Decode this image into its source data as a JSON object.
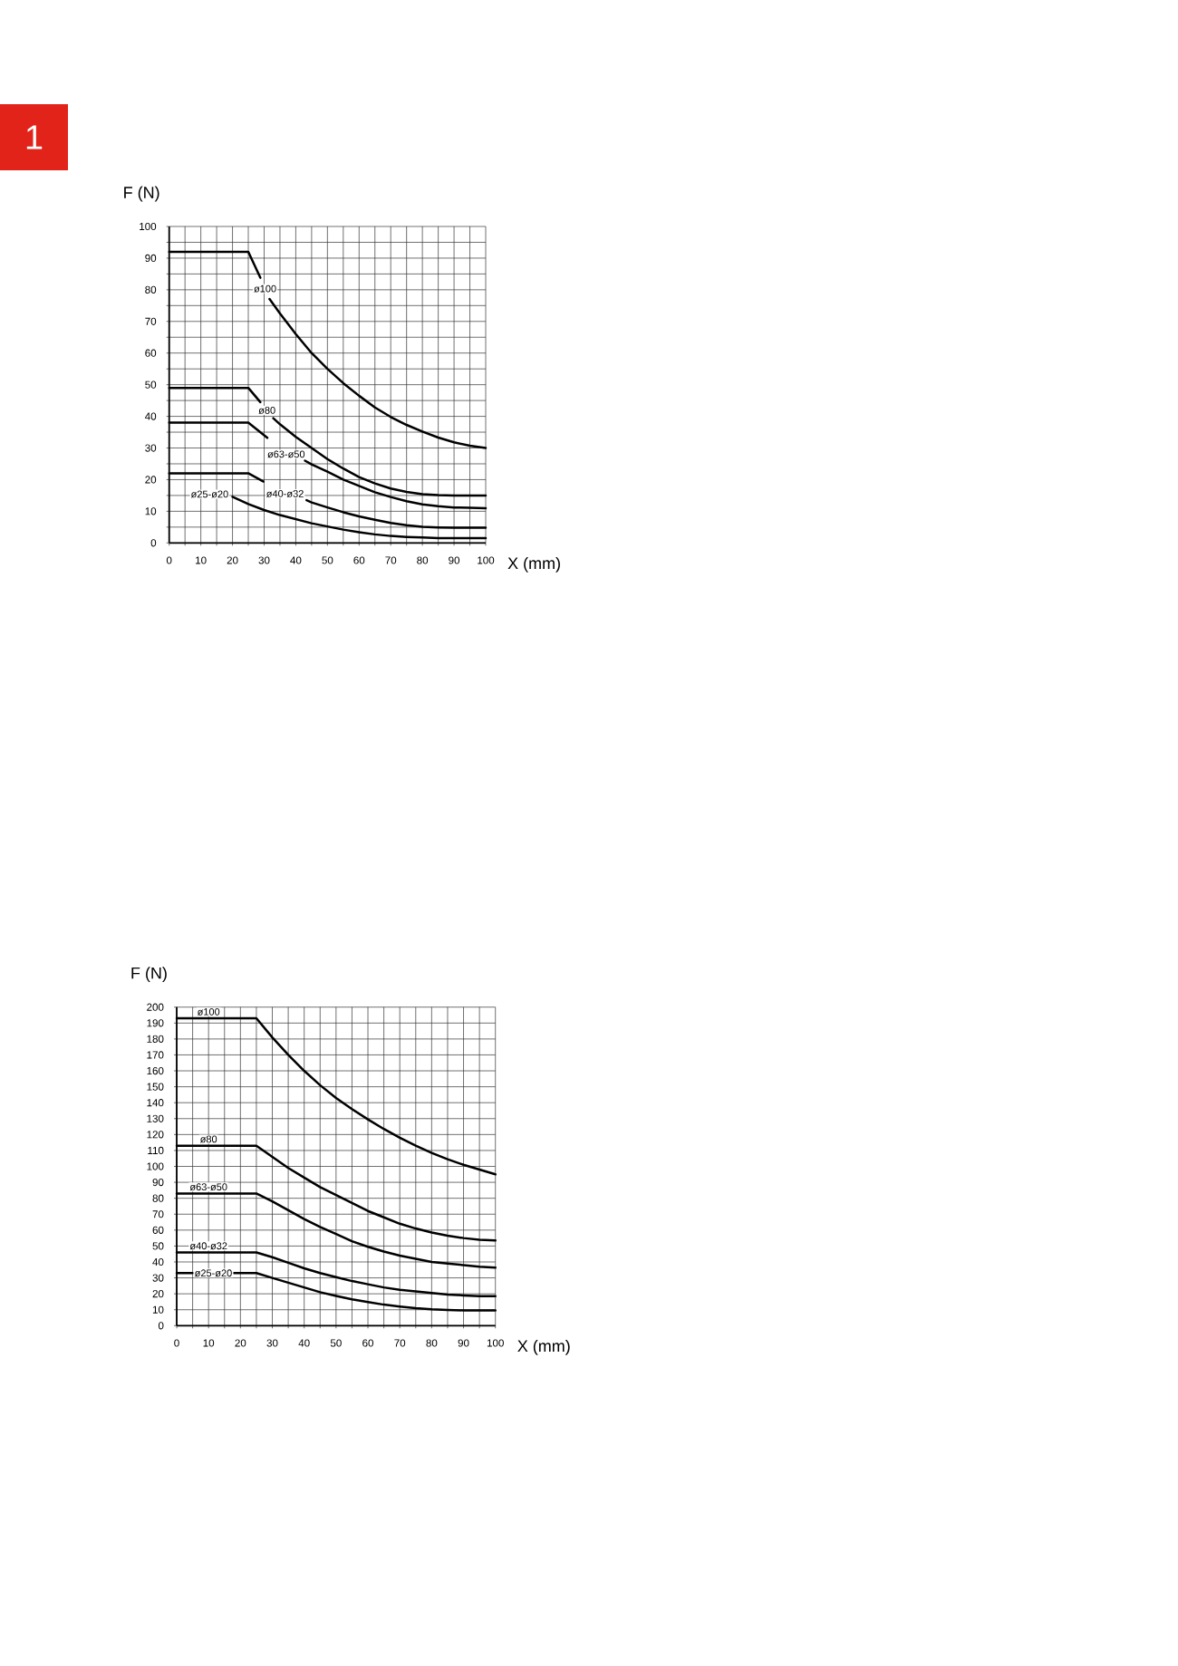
{
  "chart_data": [
    {
      "type": "line",
      "xlabel": "X (mm)",
      "ylabel": "F (N)",
      "annotations": [
        "1"
      ],
      "xlim": [
        0,
        100
      ],
      "ylim": [
        0,
        100
      ],
      "xticks": [
        0,
        {
          "value": 5,
          "label": null
        },
        10,
        {
          "value": 15,
          "label": null
        },
        20,
        {
          "value": 25,
          "label": null
        },
        30,
        {
          "value": 35,
          "label": null
        },
        40,
        {
          "value": 45,
          "label": null
        },
        50,
        {
          "value": 55,
          "label": null
        },
        60,
        {
          "value": 65,
          "label": null
        },
        70,
        {
          "value": 75,
          "label": null
        },
        80,
        {
          "value": 85,
          "label": null
        },
        90,
        {
          "value": 95,
          "label": null
        },
        100
      ],
      "yticks": [
        0,
        {
          "value": 5,
          "label": null
        },
        10,
        {
          "value": 15,
          "label": null
        },
        20,
        {
          "value": 25,
          "label": null
        },
        30,
        {
          "value": 35,
          "label": null
        },
        40,
        {
          "value": 45,
          "label": null
        },
        50,
        {
          "value": 55,
          "label": null
        },
        60,
        {
          "value": 65,
          "label": null
        },
        70,
        {
          "value": 75,
          "label": null
        },
        80,
        {
          "value": 85,
          "label": null
        },
        90,
        {
          "value": 95,
          "label": null
        },
        100
      ],
      "grid": true,
      "series": [
        {
          "name": "ø100",
          "color": "#000000",
          "x": [
            0,
            25,
            28.8,
            30.3,
            31.7,
            35,
            40,
            45,
            50,
            55,
            60,
            65,
            70,
            75,
            80,
            85,
            90,
            95,
            100
          ],
          "values": [
            92,
            92,
            83.8,
            null,
            77.1,
            72.5,
            66,
            60,
            55,
            50.5,
            46.5,
            42.8,
            39.8,
            37.3,
            35.2,
            33.3,
            31.8,
            30.7,
            30
          ]
        },
        {
          "name": "ø80",
          "color": "#000000",
          "x": [
            0,
            25,
            28.8,
            30.9,
            32.9,
            35,
            40,
            45,
            50,
            55,
            60,
            65,
            70,
            75,
            80,
            85,
            90,
            95,
            100
          ],
          "values": [
            49,
            49,
            44.5,
            null,
            39.4,
            37.5,
            33.5,
            30,
            26.5,
            23.5,
            20.8,
            18.8,
            17.2,
            16.1,
            15.4,
            15.1,
            15,
            15,
            15
          ]
        },
        {
          "name": "ø63-ø50",
          "color": "#000000",
          "x": [
            0,
            25,
            31,
            37.5,
            42.9,
            45,
            50,
            55,
            60,
            65,
            70,
            75,
            80,
            85,
            90,
            95,
            100
          ],
          "values": [
            38,
            38,
            33.2,
            null,
            26,
            24.8,
            22.5,
            20,
            18,
            16,
            14.5,
            13.2,
            12.2,
            11.6,
            11.2,
            11.1,
            11
          ]
        },
        {
          "name": "ø40-ø32",
          "color": "#000000",
          "x": [
            0,
            25,
            29.8,
            36.5,
            43.4,
            45,
            50,
            55,
            60,
            65,
            70,
            75,
            80,
            85,
            90,
            95,
            100
          ],
          "values": [
            22,
            22,
            19.4,
            null,
            13.5,
            12.8,
            11.2,
            9.7,
            8.4,
            7.3,
            6.3,
            5.6,
            5.1,
            4.9,
            4.8,
            4.8,
            4.8
          ]
        },
        {
          "name": "ø25-ø20",
          "color": "#000000",
          "x": [
            20,
            25,
            30,
            35,
            40,
            45,
            50,
            55,
            60,
            65,
            70,
            75,
            80,
            85,
            90,
            95,
            100
          ],
          "values": [
            14.6,
            12.3,
            10.4,
            8.8,
            7.5,
            6.2,
            5.2,
            4.2,
            3.4,
            2.7,
            2.2,
            1.9,
            1.7,
            1.5,
            1.5,
            1.5,
            1.5
          ]
        }
      ]
    },
    {
      "type": "line",
      "xlabel": "X (mm)",
      "ylabel": "F (N)",
      "xlim": [
        0,
        100
      ],
      "ylim": [
        0,
        200
      ],
      "xticks": [
        0,
        {
          "value": 5,
          "label": null
        },
        10,
        {
          "value": 15,
          "label": null
        },
        20,
        {
          "value": 25,
          "label": null
        },
        30,
        {
          "value": 35,
          "label": null
        },
        40,
        {
          "value": 45,
          "label": null
        },
        50,
        {
          "value": 55,
          "label": null
        },
        60,
        {
          "value": 65,
          "label": null
        },
        70,
        {
          "value": 75,
          "label": null
        },
        80,
        {
          "value": 85,
          "label": null
        },
        90,
        {
          "value": 95,
          "label": null
        },
        100
      ],
      "yticks": [
        0,
        10,
        20,
        30,
        40,
        50,
        60,
        70,
        80,
        90,
        100,
        110,
        120,
        130,
        140,
        150,
        160,
        170,
        180,
        190,
        200
      ],
      "grid": true,
      "series": [
        {
          "name": "ø100",
          "color": "#000000",
          "x": [
            0,
            25,
            30,
            35,
            40,
            45,
            50,
            55,
            60,
            65,
            70,
            75,
            80,
            85,
            90,
            95,
            100
          ],
          "values": [
            193,
            193,
            181,
            170,
            160,
            151,
            143,
            136,
            129.5,
            123.5,
            118,
            113,
            108.5,
            104.5,
            101,
            98,
            95
          ]
        },
        {
          "name": "ø80",
          "color": "#000000",
          "x": [
            0,
            25,
            30,
            35,
            40,
            45,
            50,
            55,
            60,
            65,
            70,
            75,
            80,
            85,
            90,
            95,
            100
          ],
          "values": [
            113,
            113,
            106,
            99,
            93,
            87,
            82,
            77,
            72,
            68,
            64,
            61,
            58.5,
            56.5,
            55,
            54,
            53.5
          ]
        },
        {
          "name": "ø63-ø50",
          "color": "#000000",
          "x": [
            0,
            25,
            30,
            35,
            40,
            45,
            50,
            55,
            60,
            65,
            70,
            75,
            80,
            85,
            90,
            95,
            100
          ],
          "values": [
            83,
            83,
            78,
            72.5,
            67,
            62,
            57.5,
            53,
            49.5,
            46.5,
            44,
            42,
            40,
            39,
            38,
            37,
            36.5
          ]
        },
        {
          "name": "ø40-ø32",
          "color": "#000000",
          "x": [
            0,
            25,
            30,
            35,
            40,
            45,
            50,
            55,
            60,
            65,
            70,
            75,
            80,
            85,
            90,
            95,
            100
          ],
          "values": [
            46,
            46,
            43,
            39.5,
            36,
            33,
            30.5,
            28,
            26,
            24,
            22.5,
            21.5,
            20.5,
            19.5,
            19,
            18.5,
            18.5
          ]
        },
        {
          "name": "ø25-ø20",
          "color": "#000000",
          "x": [
            0,
            5,
            11.5,
            18,
            25,
            30,
            35,
            40,
            45,
            50,
            55,
            60,
            65,
            70,
            75,
            80,
            85,
            90,
            95,
            100
          ],
          "values": [
            33,
            33,
            null,
            33,
            33,
            30,
            27,
            24,
            21,
            18.7,
            16.5,
            14.8,
            13.2,
            12,
            11,
            10.3,
            9.9,
            9.6,
            9.5,
            9.5
          ]
        }
      ]
    }
  ]
}
